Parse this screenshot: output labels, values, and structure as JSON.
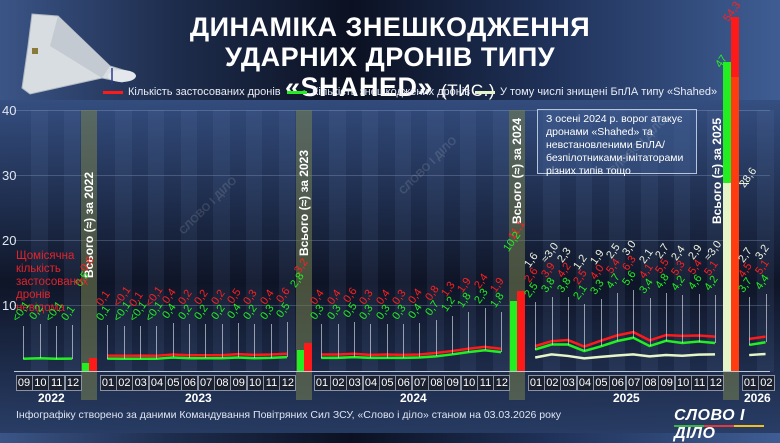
{
  "title": {
    "line1": "ДИНАМІКА ЗНЕШКОДЖЕННЯ",
    "line2": "УДАРНИХ ДРОНІВ ТИПУ «SHAHED»",
    "unit": "(ТИС.)"
  },
  "legend": [
    {
      "label": "Кількість застосованих дронів",
      "color": "#ff1a1a"
    },
    {
      "label": "Кількість знешкоджених дронів",
      "color": "#22ee22"
    },
    {
      "label": "У тому числі знищені БпЛА типу «Shahed»",
      "color": "#e6f5c8"
    }
  ],
  "y_axis": {
    "ticks": [
      "40",
      "30",
      "20",
      "10"
    ]
  },
  "notes": {
    "unknown": "Щомісячна кількість застосованих дронів невідома",
    "box": "З осені 2024 р. ворог атакує дронами «Shahed» та невстановленими БпЛА/ безпілотниками-імітаторами різних типів тощо"
  },
  "totals_labels": {
    "y2022": "Всього (≈) за 2022",
    "y2023": "Всього (≈) за 2023",
    "y2024": "Всього (≈) за 2024",
    "y2025": "Всього (≈) за 2025"
  },
  "years": [
    "2022",
    "2023",
    "2024",
    "2025",
    "2026"
  ],
  "months": {
    "y2022": [
      "09",
      "10",
      "11",
      "12"
    ],
    "y2023": [
      "01",
      "02",
      "03",
      "04",
      "05",
      "06",
      "07",
      "08",
      "09",
      "10",
      "11",
      "12"
    ],
    "y2024": [
      "01",
      "02",
      "03",
      "04",
      "05",
      "06",
      "07",
      "08",
      "09",
      "10",
      "11",
      "12"
    ],
    "y2025": [
      "01",
      "02",
      "03",
      "04",
      "05",
      "06",
      "07",
      "08",
      "09",
      "10",
      "11",
      "12"
    ],
    "y2026": [
      "01",
      "02"
    ]
  },
  "footer": "Інфографіку створено за даними Командування Повітряних Сил ЗСУ, «Слово і діло» станом на 03.03.2026 року",
  "logo": "СЛОВО І ДІЛО",
  "watermark": "СЛОВО І ДІЛО",
  "chart_data": {
    "type": "line",
    "title": "Динаміка знешкодження ударних дронів типу «Shahed» (тис.)",
    "xlabel": "",
    "ylabel": "тис.",
    "ylim": [
      0,
      40
    ],
    "grid": true,
    "legend_position": "top",
    "x": [
      "2022-09",
      "2022-10",
      "2022-11",
      "2022-12",
      "2023-01",
      "2023-02",
      "2023-03",
      "2023-04",
      "2023-05",
      "2023-06",
      "2023-07",
      "2023-08",
      "2023-09",
      "2023-10",
      "2023-11",
      "2023-12",
      "2024-01",
      "2024-02",
      "2024-03",
      "2024-04",
      "2024-05",
      "2024-06",
      "2024-07",
      "2024-08",
      "2024-09",
      "2024-10",
      "2024-11",
      "2024-12",
      "2025-01",
      "2025-02",
      "2025-03",
      "2025-04",
      "2025-05",
      "2025-06",
      "2025-07",
      "2025-08",
      "2025-09",
      "2025-10",
      "2025-11",
      "2025-12",
      "2026-01",
      "2026-02"
    ],
    "series": [
      {
        "name": "Кількість застосованих дронів",
        "color": "#ff1a1a",
        "labels": [
          null,
          null,
          null,
          null,
          "0,1",
          "<0,1",
          "0,1",
          "<0,1",
          "0,4",
          "0,2",
          "0,2",
          "0,2",
          "0,5",
          "0,3",
          "0,4",
          "0,6",
          "0,4",
          "0,4",
          "0,6",
          "0,3",
          "0,4",
          "0,3",
          "0,4",
          "0,8",
          "1,3",
          "1,9",
          "2,4",
          "1,9",
          "2,6",
          "3,9",
          "4,2",
          "2,5",
          "4,0",
          "5,4",
          "6,3",
          "4,1",
          "5,5",
          "5,3",
          "5,4",
          "5,1",
          "4,5",
          "5,1"
        ],
        "values": [
          null,
          null,
          null,
          null,
          0.1,
          0.05,
          0.1,
          0.05,
          0.4,
          0.2,
          0.2,
          0.2,
          0.5,
          0.3,
          0.4,
          0.6,
          0.4,
          0.4,
          0.6,
          0.3,
          0.4,
          0.3,
          0.4,
          0.8,
          1.3,
          1.9,
          2.4,
          1.9,
          2.6,
          3.9,
          4.2,
          2.5,
          4.0,
          5.4,
          6.3,
          4.1,
          5.5,
          5.3,
          5.4,
          5.1,
          4.5,
          5.1
        ]
      },
      {
        "name": "Кількість знешкоджених дронів",
        "color": "#22ee22",
        "labels": [
          "<0,1",
          "0,2",
          "<0,1",
          "0,1",
          "0,1",
          "<0,1",
          "<0,1",
          "<0,1",
          "0,4",
          "0,2",
          "0,2",
          "0,2",
          "0,4",
          "0,2",
          "0,3",
          "0,5",
          "0,3",
          "0,3",
          "0,5",
          "0,3",
          "0,3",
          "0,3",
          "0,4",
          "0,7",
          "1,2",
          "1,8",
          "2,3",
          "1,8",
          "2,5",
          "3,8",
          "3,8",
          "2,1",
          "3,3",
          "4,7",
          "5,6",
          "3,4",
          "4,8",
          "4,2",
          "4,6",
          "4,2",
          "3,7",
          "4,4"
        ],
        "values": [
          0.05,
          0.2,
          0.05,
          0.1,
          0.1,
          0.05,
          0.05,
          0.05,
          0.4,
          0.2,
          0.2,
          0.2,
          0.4,
          0.2,
          0.3,
          0.5,
          0.3,
          0.3,
          0.5,
          0.3,
          0.3,
          0.3,
          0.4,
          0.7,
          1.2,
          1.8,
          2.3,
          1.8,
          2.5,
          3.8,
          3.8,
          2.1,
          3.3,
          4.7,
          5.6,
          3.4,
          4.8,
          4.2,
          4.6,
          4.2,
          3.7,
          4.4
        ]
      },
      {
        "name": "У тому числі знищені БпЛА типу «Shahed»",
        "color": "#e6f5c8",
        "labels": [
          null,
          null,
          null,
          null,
          null,
          null,
          null,
          null,
          null,
          null,
          null,
          null,
          null,
          null,
          null,
          null,
          null,
          null,
          null,
          null,
          null,
          null,
          null,
          null,
          null,
          null,
          null,
          null,
          "1,6",
          "≈3,0",
          "2,3",
          "1,2",
          "1,9",
          "2,5",
          "3,0",
          "2,1",
          "2,7",
          "2,4",
          "2,9",
          "≈3,0",
          "2,7",
          "3,2"
        ],
        "values": [
          null,
          null,
          null,
          null,
          null,
          null,
          null,
          null,
          null,
          null,
          null,
          null,
          null,
          null,
          null,
          null,
          null,
          null,
          null,
          null,
          null,
          null,
          null,
          null,
          null,
          null,
          null,
          null,
          1.6,
          3.0,
          2.3,
          1.2,
          1.9,
          2.5,
          3.0,
          2.1,
          2.7,
          2.4,
          2.9,
          3.0,
          2.7,
          3.2
        ]
      }
    ],
    "annual_totals": [
      {
        "year": "2022",
        "label": "Всього (≈) за 2022",
        "launched": 0.6,
        "launched_label": "0,6",
        "downed": 0.5,
        "downed_label": "0,5"
      },
      {
        "year": "2023",
        "label": "Всього (≈) за 2023",
        "launched": 3.2,
        "launched_label": "3,2",
        "downed": 2.8,
        "downed_label": "2,8"
      },
      {
        "year": "2024",
        "label": "Всього (≈) за 2024",
        "launched": 11.1,
        "launched_label": "11,1",
        "downed": 10.2,
        "downed_label": "10,2"
      },
      {
        "year": "2025",
        "label": "Всього (≈) за 2025",
        "launched": 54.3,
        "launched_label": "54,3",
        "downed": 47,
        "downed_label": "47",
        "shahed_destroyed": 28.6,
        "shahed_label": "28,6"
      }
    ]
  }
}
